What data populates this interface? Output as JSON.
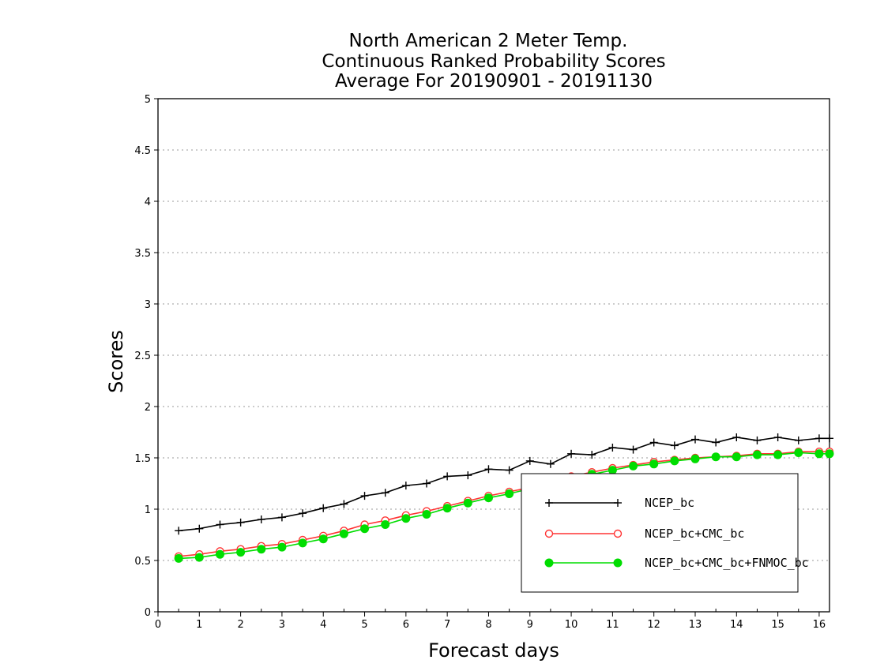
{
  "chart_data": {
    "type": "line",
    "title_lines": [
      "North American 2 Meter Temp.",
      "Continuous Ranked Probability Scores",
      "Average For 20190901 - 20191130"
    ],
    "xlabel": "Forecast days",
    "ylabel": "Scores",
    "xlim": [
      0,
      16.25
    ],
    "ylim": [
      0,
      5
    ],
    "x_ticks": [
      0,
      1,
      2,
      3,
      4,
      5,
      6,
      7,
      8,
      9,
      10,
      11,
      12,
      13,
      14,
      15,
      16
    ],
    "y_ticks": [
      0,
      0.5,
      1,
      1.5,
      2,
      2.5,
      3,
      3.5,
      4,
      4.5,
      5
    ],
    "y_tick_labels": [
      "0",
      "0.5",
      "1",
      "1.5",
      "2",
      "2.5",
      "3",
      "3.5",
      "4",
      "4.5",
      "5"
    ],
    "grid": "horizontal dotted",
    "legend_position": "lower-right",
    "x": [
      0.5,
      1,
      1.5,
      2,
      2.5,
      3,
      3.5,
      4,
      4.5,
      5,
      5.5,
      6,
      6.5,
      7,
      7.5,
      8,
      8.5,
      9,
      9.5,
      10,
      10.5,
      11,
      11.5,
      12,
      12.5,
      13,
      13.5,
      14,
      14.5,
      15,
      15.5,
      16,
      16.25
    ],
    "series": [
      {
        "name": "NCEP_bc",
        "color": "#000000",
        "marker": "plus",
        "values": [
          0.79,
          0.81,
          0.85,
          0.87,
          0.9,
          0.92,
          0.96,
          1.01,
          1.05,
          1.13,
          1.16,
          1.23,
          1.25,
          1.32,
          1.33,
          1.39,
          1.38,
          1.47,
          1.44,
          1.54,
          1.53,
          1.6,
          1.58,
          1.65,
          1.62,
          1.68,
          1.65,
          1.7,
          1.67,
          1.7,
          1.67,
          1.69,
          1.69
        ]
      },
      {
        "name": "NCEP_bc+CMC_bc",
        "color": "#ff3333",
        "marker": "open-circle",
        "values": [
          0.54,
          0.56,
          0.59,
          0.61,
          0.64,
          0.66,
          0.7,
          0.74,
          0.79,
          0.85,
          0.89,
          0.94,
          0.98,
          1.03,
          1.08,
          1.13,
          1.17,
          1.21,
          1.26,
          1.32,
          1.36,
          1.4,
          1.43,
          1.46,
          1.48,
          1.5,
          1.51,
          1.52,
          1.54,
          1.54,
          1.56,
          1.56,
          1.56
        ]
      },
      {
        "name": "NCEP_bc+CMC_bc+FNMOC_bc",
        "color": "#00dd00",
        "marker": "filled-circle",
        "values": [
          0.52,
          0.53,
          0.56,
          0.58,
          0.61,
          0.63,
          0.67,
          0.71,
          0.76,
          0.81,
          0.85,
          0.91,
          0.95,
          1.01,
          1.06,
          1.11,
          1.15,
          1.2,
          1.25,
          1.3,
          1.34,
          1.38,
          1.42,
          1.44,
          1.47,
          1.49,
          1.51,
          1.51,
          1.53,
          1.53,
          1.55,
          1.54,
          1.54
        ]
      }
    ]
  }
}
